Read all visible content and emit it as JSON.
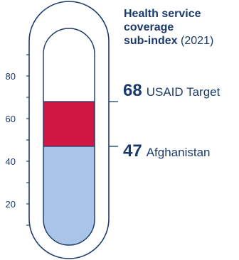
{
  "chart_data": {
    "type": "gauge",
    "title_bold_lines": [
      "Health service",
      "coverage",
      "sub-index"
    ],
    "title_year": "(2021)",
    "y_ticks": [
      20,
      40,
      60,
      80
    ],
    "ylim": [
      0,
      100
    ],
    "series": [
      {
        "name": "Afghanistan",
        "value": 47,
        "color": "#a9c4e6"
      },
      {
        "name": "USAID Target",
        "value": 68,
        "color": "#cf1744"
      }
    ]
  },
  "colors": {
    "outline": "#1b3a6b",
    "background": "#ffffff"
  }
}
